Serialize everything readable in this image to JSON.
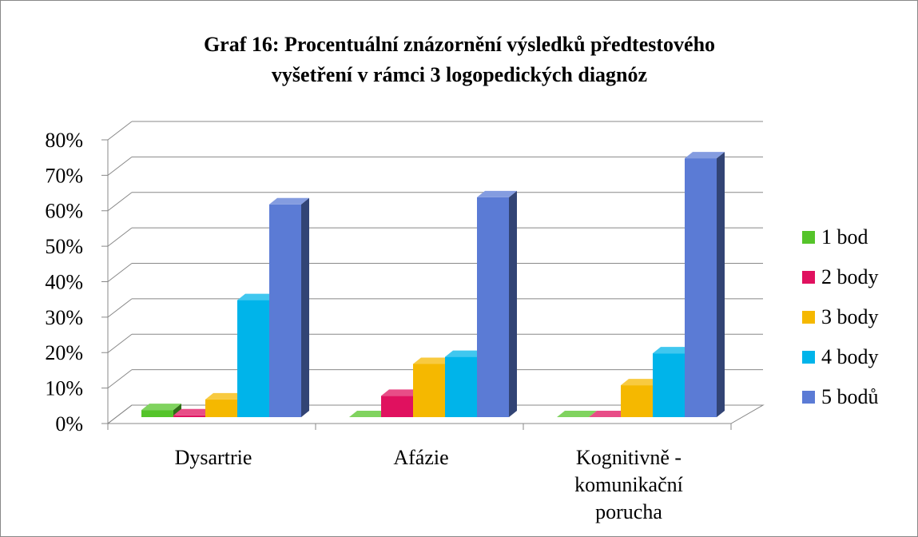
{
  "chart_data": {
    "type": "bar3d",
    "title": [
      "Graf 16: Procentuální znázornění výsledků předtestového",
      "vyšetření v rámci 3 logopedických diagnóz"
    ],
    "categories": [
      "Dysartrie",
      "Afázie",
      "Kognitivně - komunikační porucha"
    ],
    "series": [
      {
        "name": "1 bod",
        "color": "#55c42a",
        "values": [
          2,
          0,
          0
        ]
      },
      {
        "name": "2 body",
        "color": "#e0115f",
        "values": [
          0.5,
          6,
          0
        ]
      },
      {
        "name": "3 body",
        "color": "#f5b800",
        "values": [
          5,
          15,
          9
        ]
      },
      {
        "name": "4 body",
        "color": "#00b4ea",
        "values": [
          33,
          17,
          18
        ]
      },
      {
        "name": "5 bodů",
        "color": "#5b7bd5",
        "values": [
          60,
          62,
          73
        ]
      }
    ],
    "ylim": [
      0,
      80
    ],
    "yticks": [
      {
        "value": 0,
        "label": "0%"
      },
      {
        "value": 10,
        "label": "10%"
      },
      {
        "value": 20,
        "label": "20%"
      },
      {
        "value": 30,
        "label": "30%"
      },
      {
        "value": 40,
        "label": "40%"
      },
      {
        "value": 50,
        "label": "50%"
      },
      {
        "value": 60,
        "label": "60%"
      },
      {
        "value": 70,
        "label": "70%"
      },
      {
        "value": 80,
        "label": "80%"
      }
    ],
    "grid": true,
    "legend": "right"
  }
}
